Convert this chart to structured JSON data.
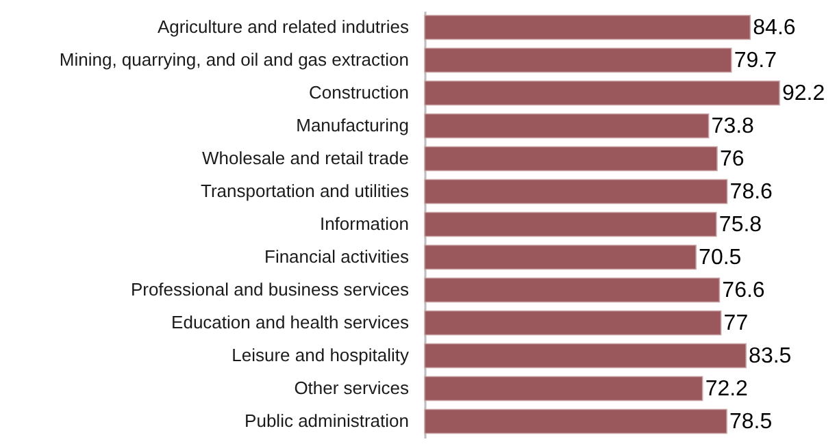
{
  "chart_data": {
    "type": "bar",
    "orientation": "horizontal",
    "color": "#9a585c",
    "data_labels": true,
    "categories": [
      "Agriculture and related indutries",
      "Mining, quarrying, and oil and gas extraction",
      "Construction",
      "Manufacturing",
      "Wholesale and retail trade",
      "Transportation and utilities",
      "Information",
      "Financial activities",
      "Professional and business services",
      "Education and health services",
      "Leisure and hospitality",
      "Other services",
      "Public administration"
    ],
    "values": [
      84.6,
      79.7,
      92.2,
      73.8,
      76,
      78.6,
      75.8,
      70.5,
      76.6,
      77,
      83.5,
      72.2,
      78.5
    ]
  }
}
